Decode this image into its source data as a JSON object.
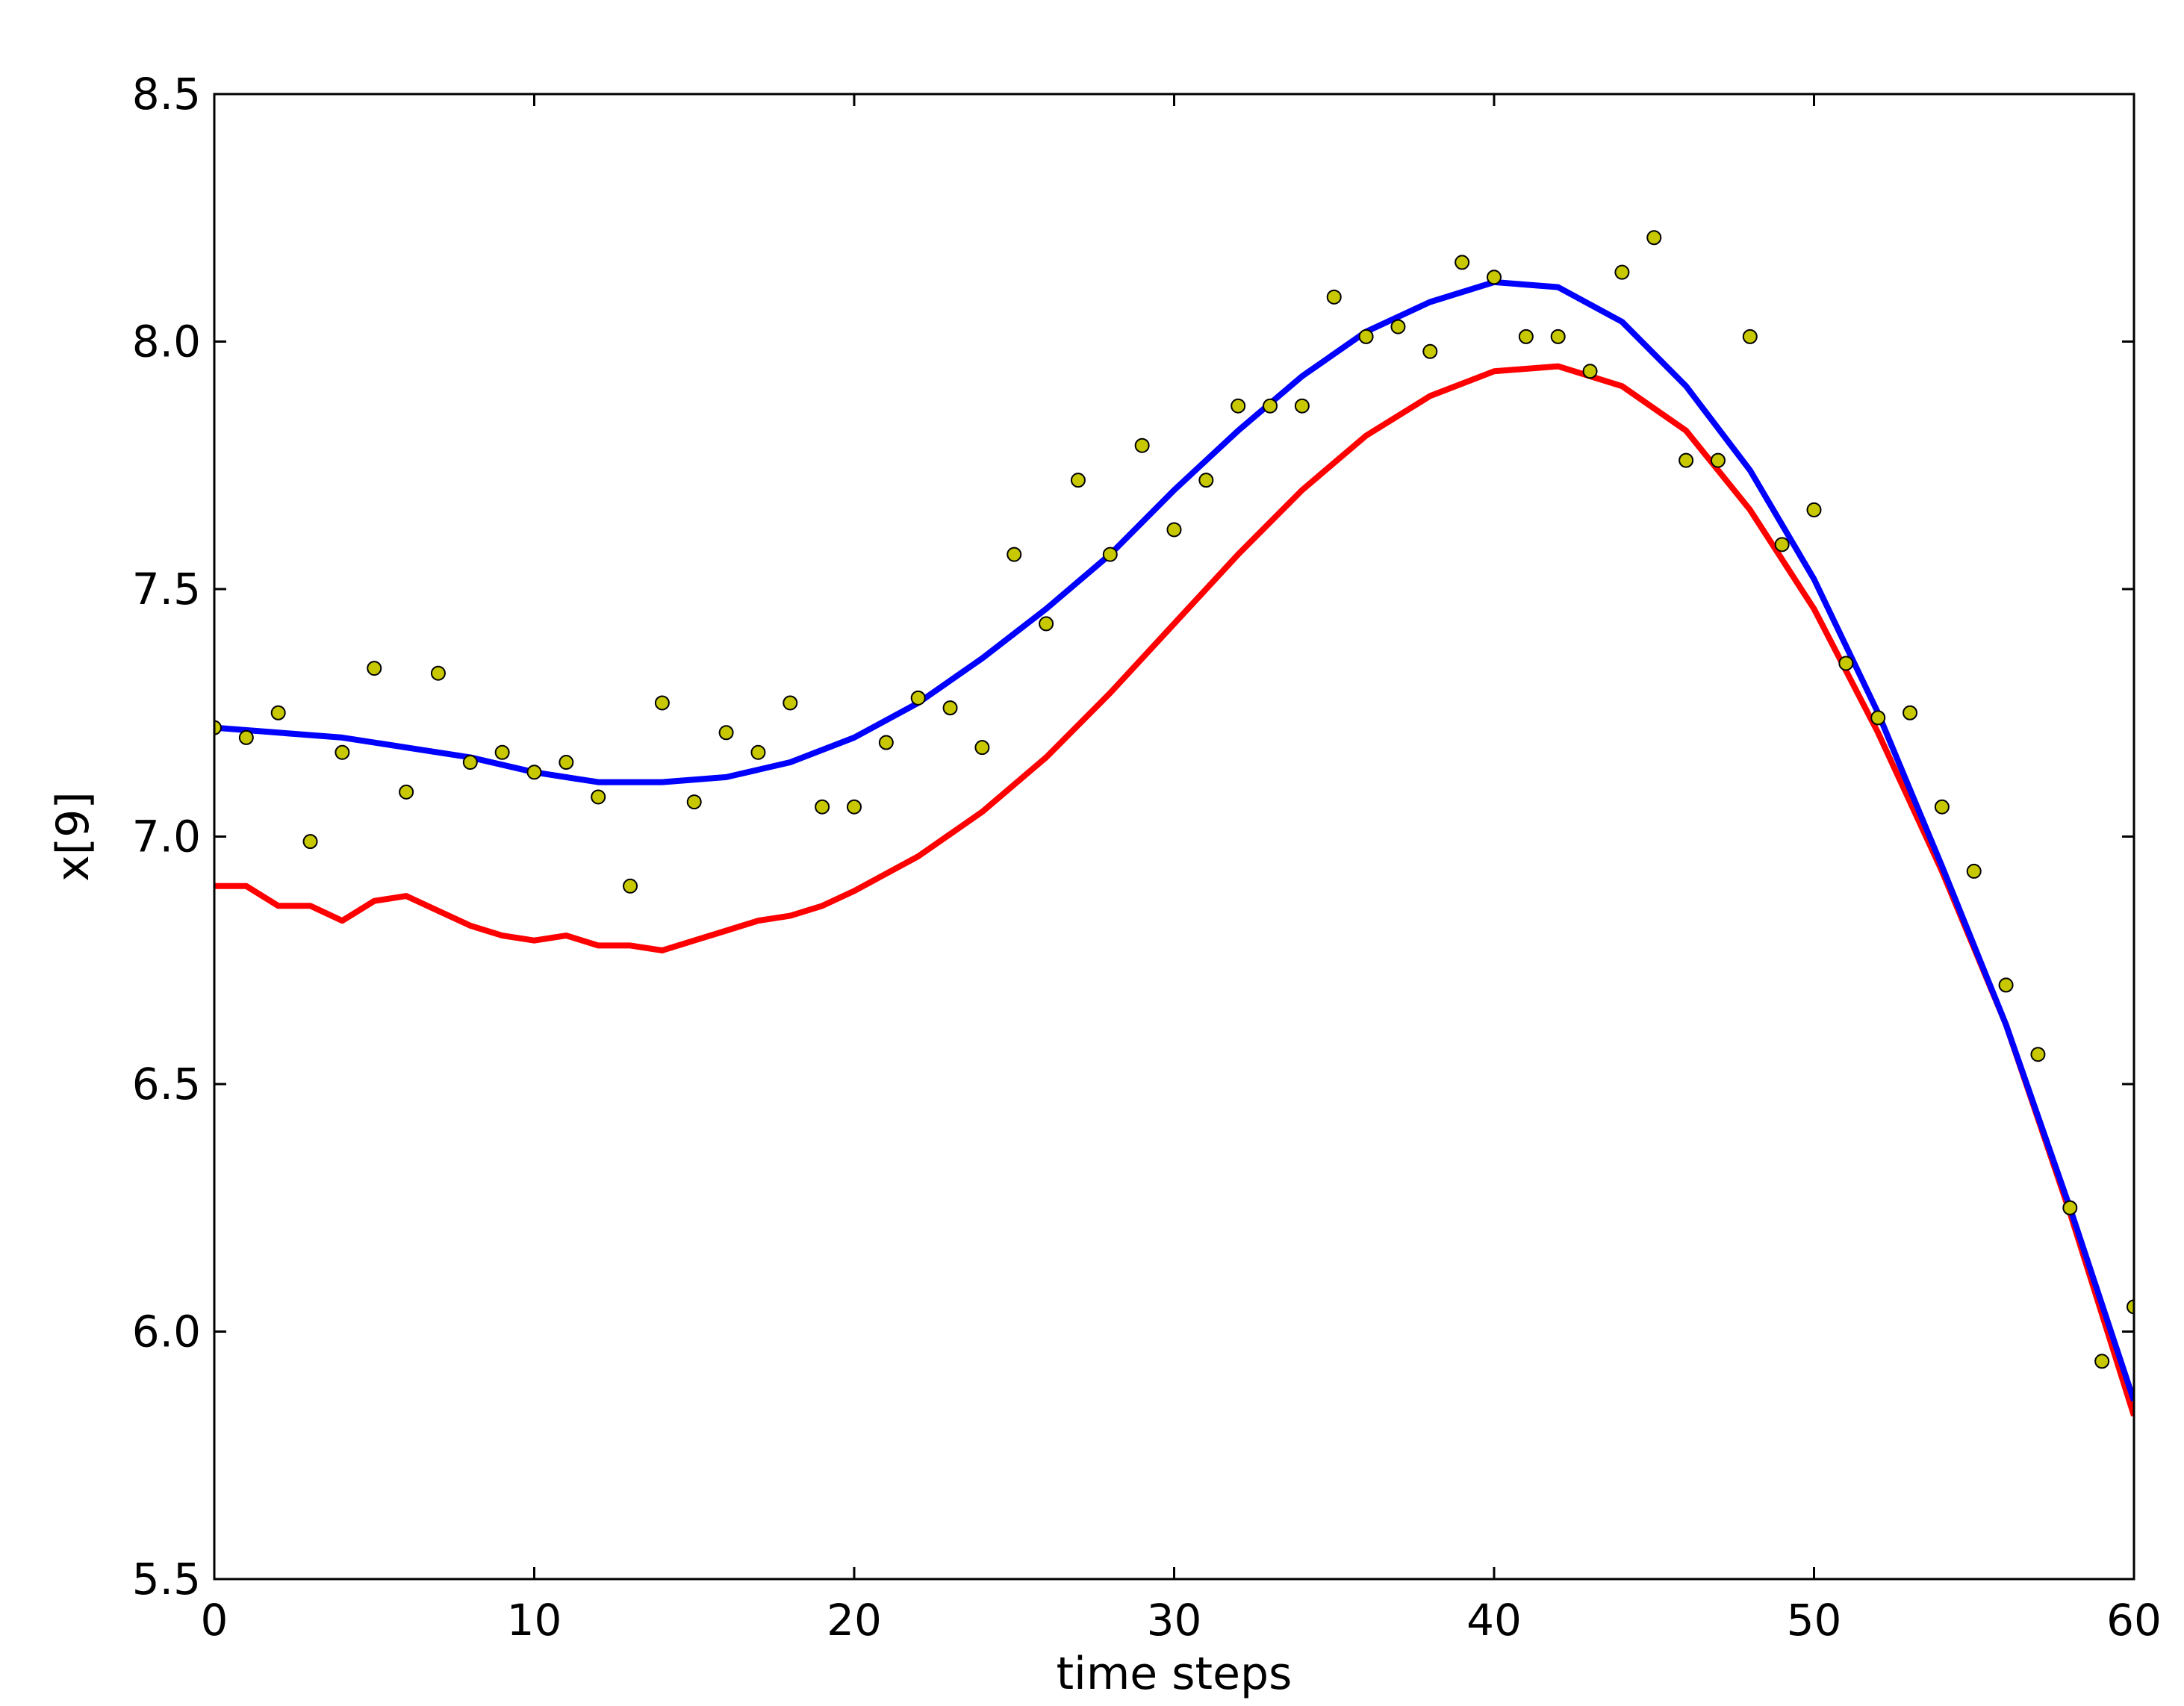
{
  "chart_data": {
    "type": "line",
    "title": "",
    "xlabel": "time steps",
    "ylabel": "x[9]",
    "xlim": [
      0,
      60
    ],
    "ylim": [
      5.5,
      8.5
    ],
    "xticks": [
      0,
      10,
      20,
      30,
      40,
      50,
      60
    ],
    "yticks": [
      5.5,
      6.0,
      6.5,
      7.0,
      7.5,
      8.0,
      8.5
    ],
    "xtick_labels": [
      "0",
      "10",
      "20",
      "30",
      "40",
      "50",
      "60"
    ],
    "ytick_labels": [
      "5.5",
      "6.0",
      "6.5",
      "7.0",
      "7.5",
      "8.0",
      "8.5"
    ],
    "grid": false,
    "legend": "none",
    "series": [
      {
        "kind": "scatter",
        "color": "#c8c800",
        "x": [
          0,
          1,
          2,
          3,
          4,
          5,
          6,
          7,
          8,
          9,
          10,
          11,
          12,
          13,
          14,
          15,
          16,
          17,
          18,
          19,
          20,
          21,
          22,
          23,
          24,
          25,
          26,
          27,
          28,
          29,
          30,
          31,
          32,
          33,
          34,
          35,
          36,
          37,
          38,
          39,
          40,
          41,
          42,
          43,
          44,
          45,
          46,
          47,
          48,
          49,
          50,
          51,
          52,
          53,
          54,
          55,
          56,
          57,
          58,
          59,
          60
        ],
        "y": [
          7.22,
          7.2,
          7.25,
          6.99,
          7.17,
          7.34,
          7.09,
          7.33,
          7.15,
          7.17,
          7.13,
          7.15,
          7.08,
          6.9,
          7.27,
          7.07,
          7.21,
          7.17,
          7.27,
          7.06,
          7.06,
          7.19,
          7.28,
          7.26,
          7.18,
          7.57,
          7.43,
          7.72,
          7.57,
          7.79,
          7.62,
          7.72,
          7.87,
          7.87,
          7.87,
          8.09,
          8.01,
          8.03,
          7.98,
          8.16,
          8.13,
          8.01,
          8.01,
          7.94,
          8.14,
          8.21,
          7.76,
          7.76,
          8.01,
          7.59,
          7.66,
          7.35,
          7.24,
          7.25,
          7.06,
          6.93,
          6.7,
          6.56,
          6.25,
          5.94,
          6.05
        ]
      },
      {
        "kind": "line",
        "color": "#ff0000",
        "x": [
          0,
          1,
          2,
          3,
          4,
          5,
          6,
          7,
          8,
          9,
          10,
          11,
          12,
          13,
          14,
          15,
          16,
          17,
          18,
          19,
          20,
          22,
          24,
          26,
          28,
          30,
          32,
          34,
          36,
          38,
          40,
          42,
          44,
          46,
          48,
          50,
          52,
          54,
          56,
          58,
          60
        ],
        "y": [
          6.9,
          6.9,
          6.86,
          6.86,
          6.83,
          6.87,
          6.88,
          6.85,
          6.82,
          6.8,
          6.79,
          6.8,
          6.78,
          6.78,
          6.77,
          6.79,
          6.81,
          6.83,
          6.84,
          6.86,
          6.89,
          6.96,
          7.05,
          7.16,
          7.29,
          7.43,
          7.57,
          7.7,
          7.81,
          7.89,
          7.94,
          7.95,
          7.91,
          7.82,
          7.66,
          7.46,
          7.21,
          6.93,
          6.62,
          6.24,
          5.83
        ]
      },
      {
        "kind": "line",
        "color": "#0000ff",
        "x": [
          0,
          2,
          4,
          6,
          8,
          10,
          12,
          14,
          16,
          18,
          20,
          22,
          24,
          26,
          28,
          30,
          32,
          34,
          36,
          38,
          40,
          42,
          44,
          46,
          48,
          50,
          52,
          54,
          56,
          58,
          60
        ],
        "y": [
          7.22,
          7.21,
          7.2,
          7.18,
          7.16,
          7.13,
          7.11,
          7.11,
          7.12,
          7.15,
          7.2,
          7.27,
          7.36,
          7.46,
          7.57,
          7.7,
          7.82,
          7.93,
          8.02,
          8.08,
          8.12,
          8.11,
          8.04,
          7.91,
          7.74,
          7.52,
          7.25,
          6.94,
          6.62,
          6.25,
          5.86
        ]
      }
    ]
  }
}
